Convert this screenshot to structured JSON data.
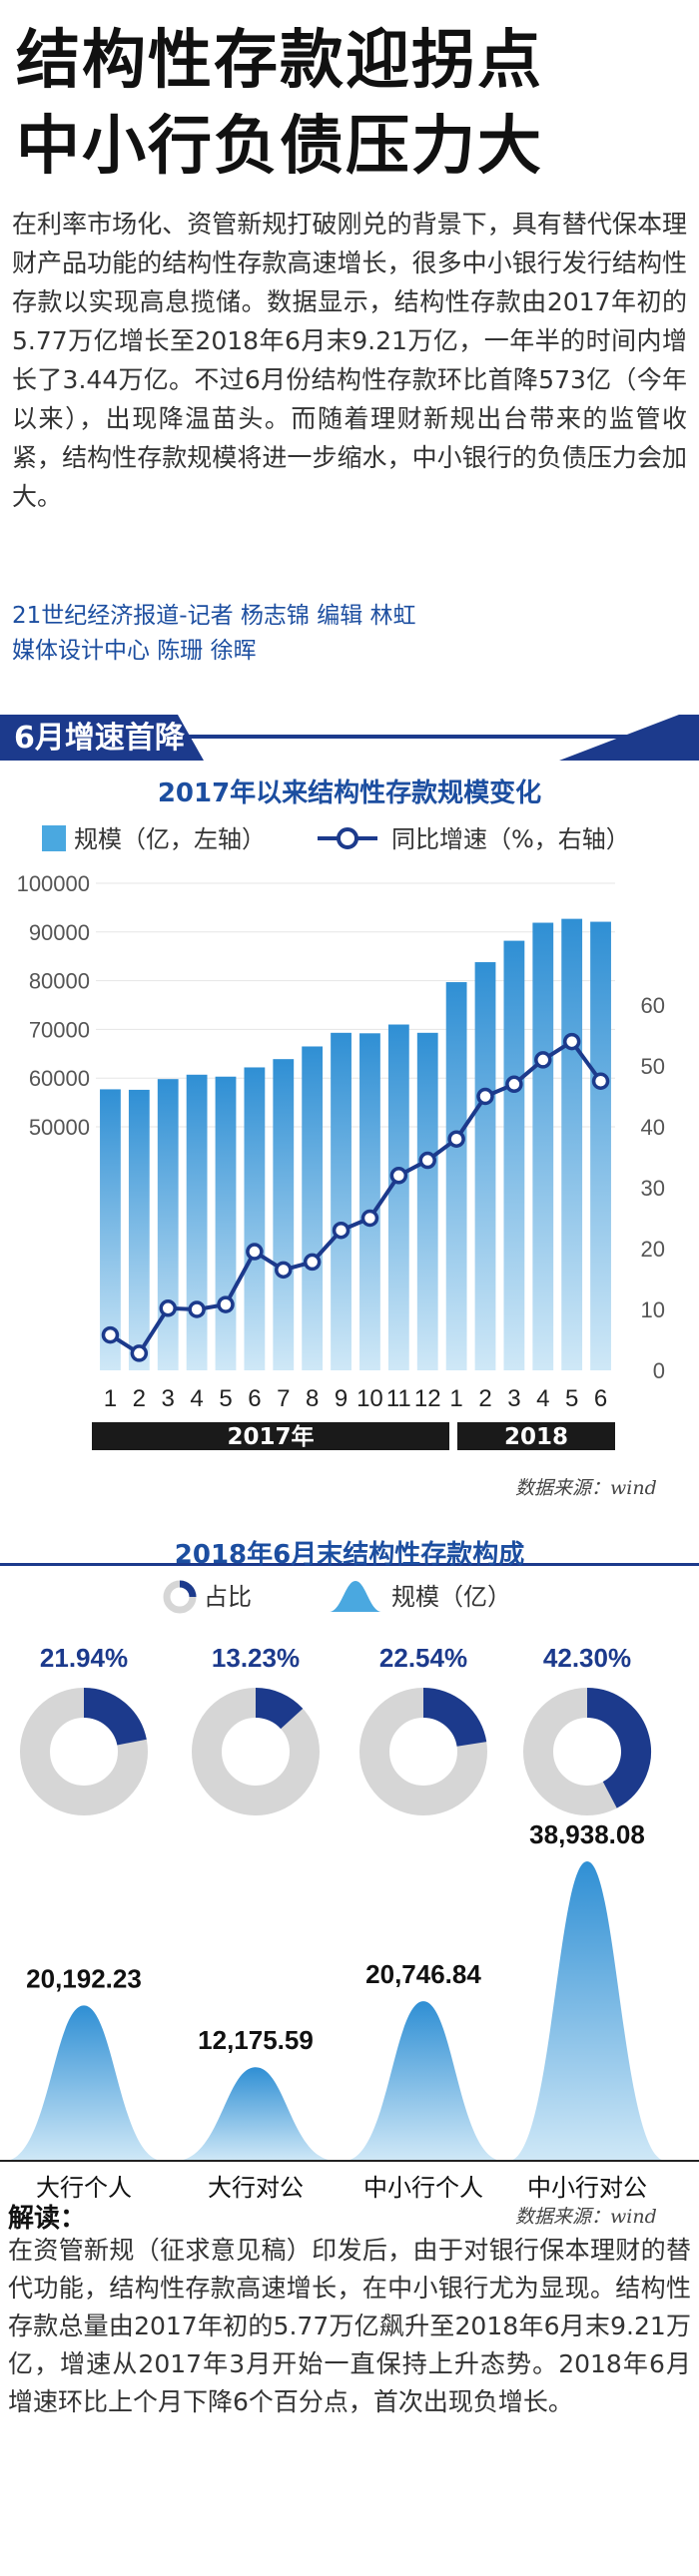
{
  "headline": [
    "结构性存款迎拐点",
    "中小行负债压力大"
  ],
  "intro": "在利率市场化、资管新规打破刚兑的背景下，具有替代保本理财产品功能的结构性存款高速增长，很多中小银行发行结构性存款以实现高息揽储。数据显示，结构性存款由2017年初的5.77万亿增长至2018年6月末9.21万亿，一年半的时间内增长了3.44万亿。不过6月份结构性存款环比首降573亿（今年以来），出现降温苗头。而随着理财新规出台带来的监管收紧，结构性存款规模将进一步缩水，中小银行的负债压力会加大。",
  "credits": [
    "21世纪经济报道-记者 杨志锦  编辑 林虹",
    "媒体设计中心 陈珊 徐晖"
  ],
  "section_title": "6月增速首降",
  "colors": {
    "dark_blue": "#1c3a8c",
    "bar_blue": "#4aa8e0",
    "accent_blue": "#1c4ea0",
    "gray": "#d6d6d6"
  },
  "chart_data": [
    {
      "type": "bar",
      "title": "2017年以来结构性存款规模变化",
      "legend": [
        "规模（亿，左轴）",
        "同比增速（%，右轴）"
      ],
      "categories": [
        "1",
        "2",
        "3",
        "4",
        "5",
        "6",
        "7",
        "8",
        "9",
        "10",
        "11",
        "12",
        "1",
        "2",
        "3",
        "4",
        "5",
        "6"
      ],
      "year_labels": [
        "2017年",
        "2018"
      ],
      "series": [
        {
          "name": "规模（亿，左轴）",
          "type": "bar",
          "axis": "left",
          "values": [
            57700,
            57600,
            59800,
            60700,
            60300,
            62200,
            63900,
            66500,
            69300,
            69200,
            71000,
            69300,
            79700,
            83800,
            88200,
            91900,
            92700,
            92100
          ]
        },
        {
          "name": "同比增速（%，右轴）",
          "type": "line",
          "axis": "right",
          "values": [
            5.8,
            2.8,
            10.2,
            10.0,
            10.8,
            19.5,
            16.5,
            17.8,
            23.0,
            25.0,
            32.0,
            34.5,
            38.0,
            45.0,
            47.0,
            51.0,
            54.0,
            47.5
          ]
        }
      ],
      "ylim_left": [
        0,
        100000
      ],
      "left_ticks": [
        "50000",
        "60000",
        "70000",
        "80000",
        "90000",
        "100000"
      ],
      "ylim_right": [
        0,
        80
      ],
      "right_ticks": [
        "0",
        "10",
        "20",
        "30",
        "40",
        "50",
        "60"
      ],
      "source": "数据来源：wind"
    },
    {
      "type": "pie",
      "title": "2018年6月末结构性存款构成",
      "legend": [
        "占比",
        "规模（亿）"
      ],
      "categories": [
        "大行个人",
        "大行对公",
        "中小行个人",
        "中小行对公"
      ],
      "share_percent": [
        21.94,
        13.23,
        22.54,
        42.3
      ],
      "share_labels": [
        "21.94%",
        "13.23%",
        "22.54%",
        "42.30%"
      ],
      "scale_values": [
        20192.23,
        12175.59,
        20746.84,
        38938.08
      ],
      "scale_labels": [
        "20,192.23",
        "12,175.59",
        "20,746.84",
        "38,938.08"
      ],
      "source": "数据来源：wind"
    }
  ],
  "jiedu": {
    "title": "解读：",
    "source": "数据来源：wind",
    "body": "在资管新规（征求意见稿）印发后，由于对银行保本理财的替代功能，结构性存款高速增长，在中小银行尤为显现。结构性存款总量由2017年初的5.77万亿飙升至2018年6月末9.21万亿，增速从2017年3月开始一直保持上升态势。2018年6月增速环比上个月下降6个百分点，首次出现负增长。"
  }
}
